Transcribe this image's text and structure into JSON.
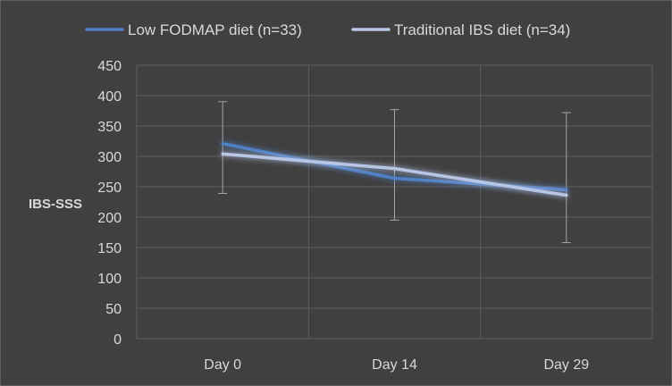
{
  "chart_data": {
    "type": "line",
    "categories": [
      "Day 0",
      "Day 14",
      "Day 29"
    ],
    "ylabel": "IBS-SSS",
    "ylim": [
      0,
      450
    ],
    "yticks": [
      0,
      50,
      100,
      150,
      200,
      250,
      300,
      350,
      400,
      450
    ],
    "grid": true,
    "legend_position": "top",
    "error_bars": [
      {
        "low": 239,
        "high": 390
      },
      {
        "low": 195,
        "high": 377
      },
      {
        "low": 158,
        "high": 372
      }
    ],
    "series": [
      {
        "name": "Low FODMAP diet (n=33)",
        "values": [
          321,
          264,
          245
        ],
        "color": "#4f7fc4"
      },
      {
        "name": "Traditional IBS diet (n=34)",
        "values": [
          304,
          280,
          236
        ],
        "color": "#b8c6e6"
      }
    ]
  }
}
